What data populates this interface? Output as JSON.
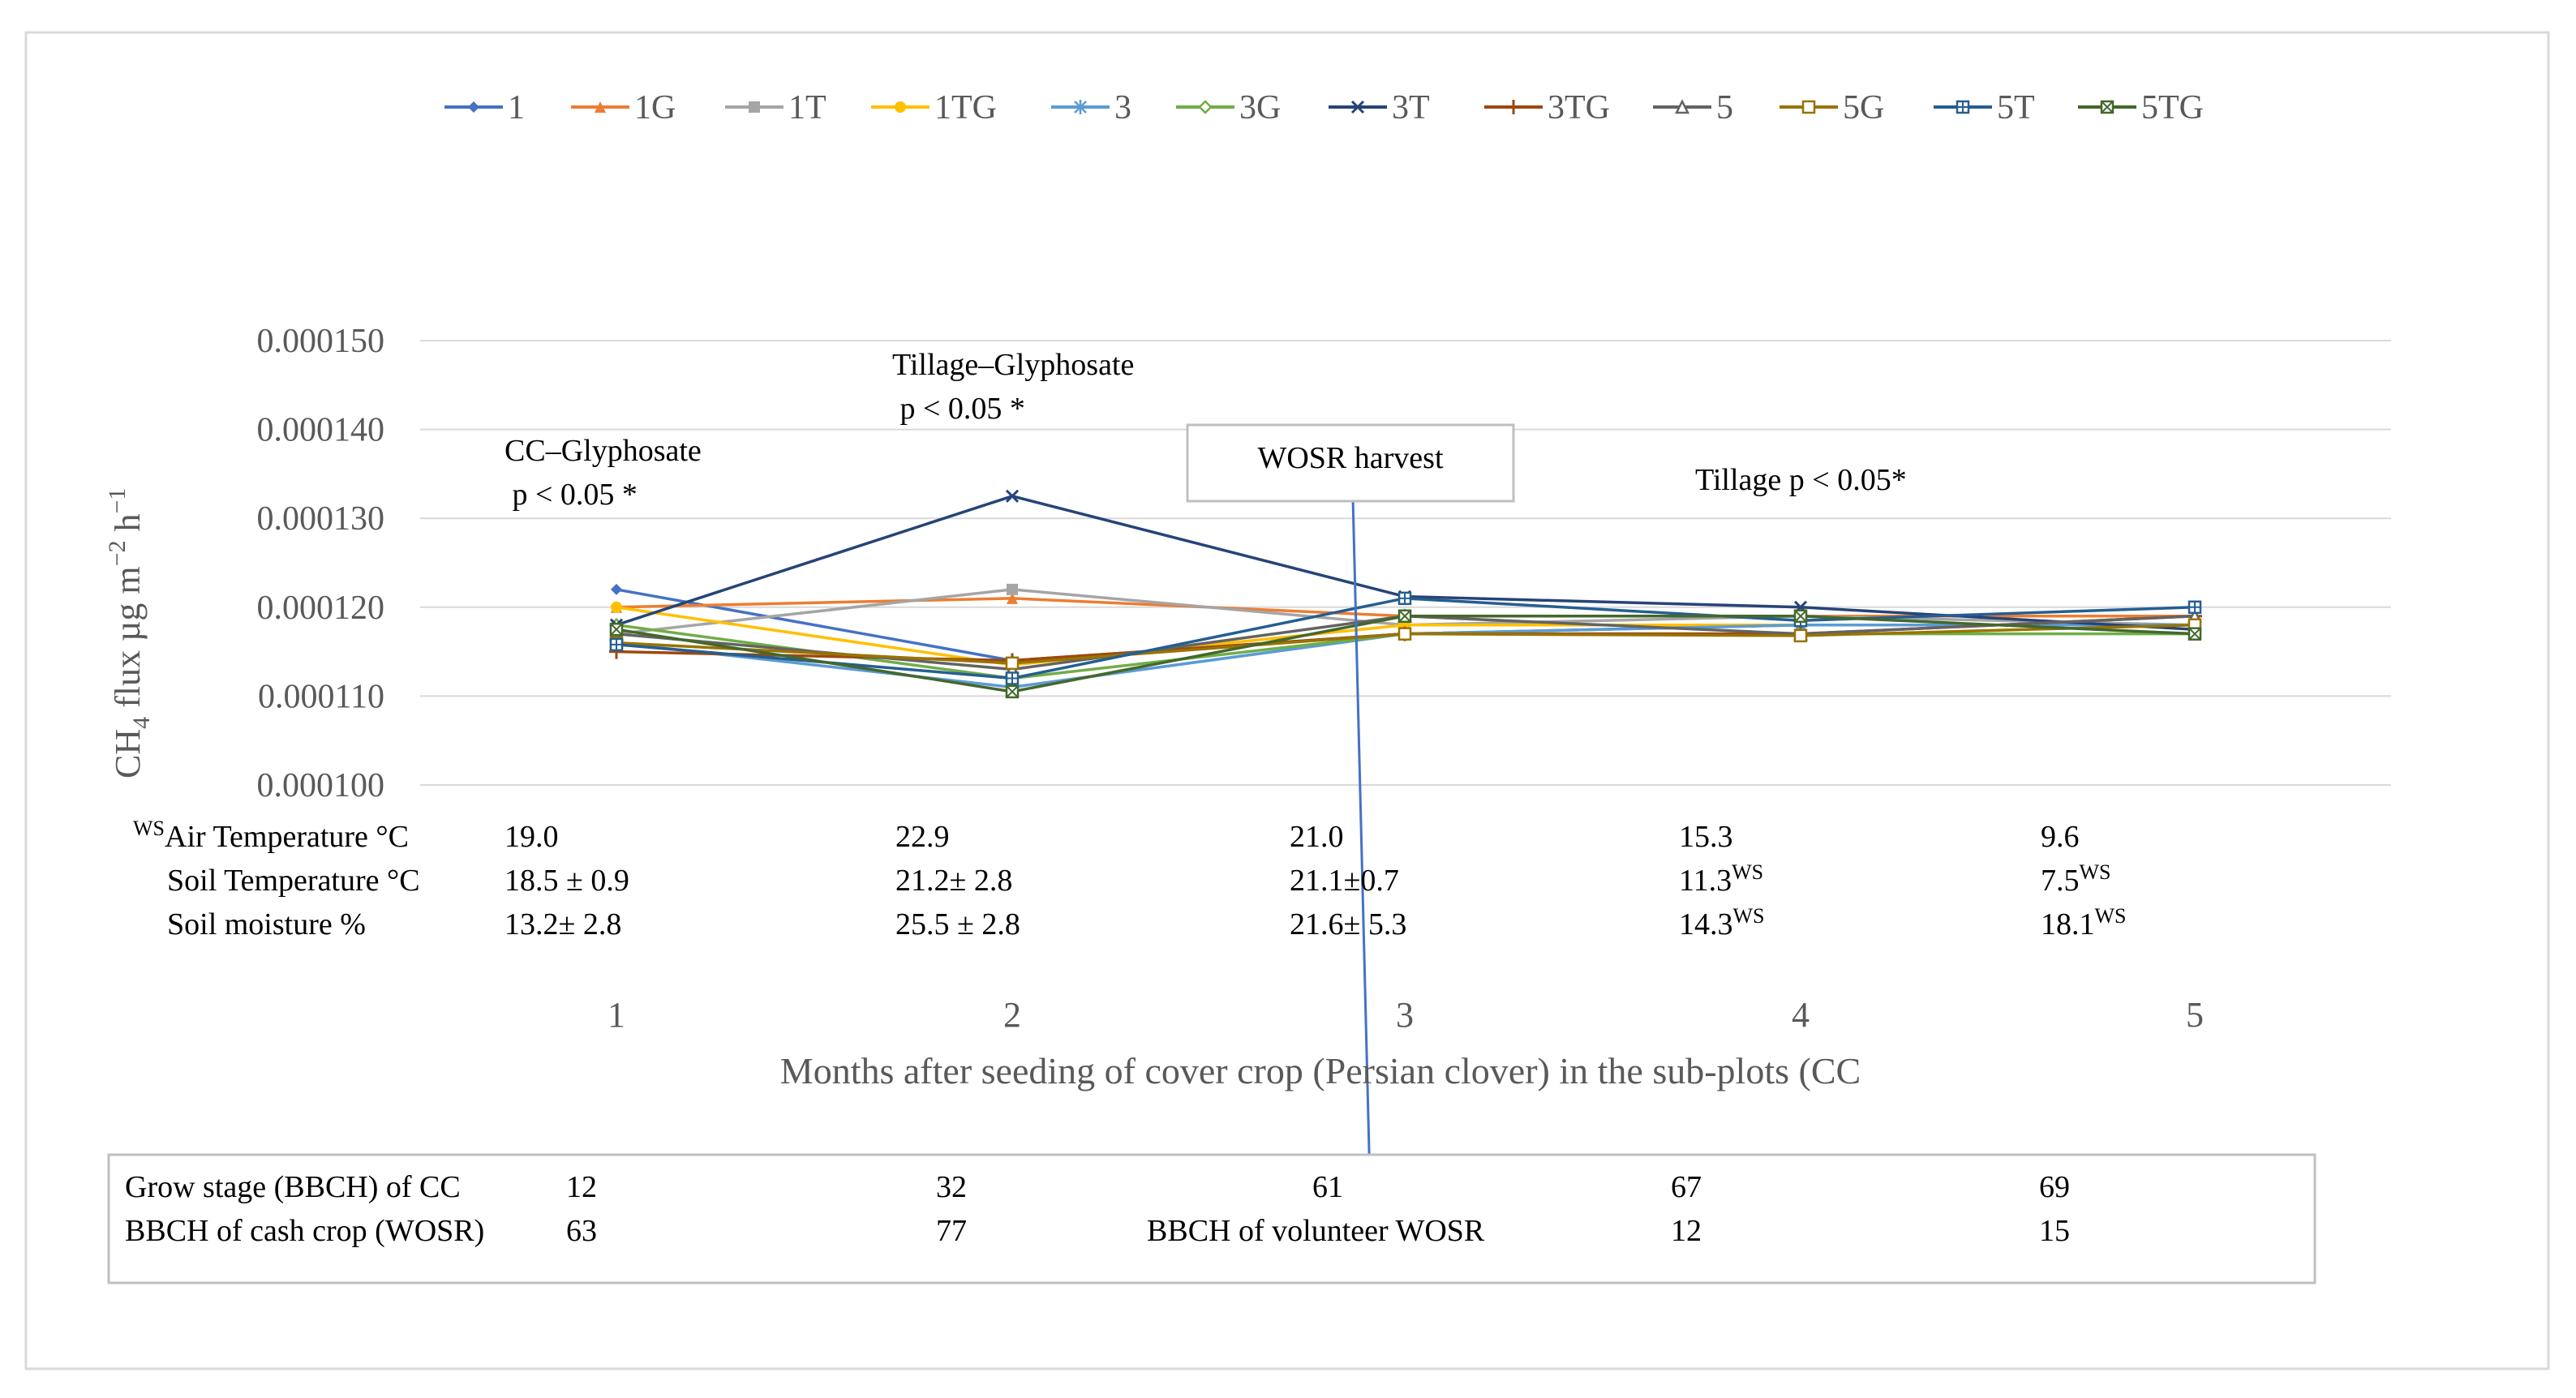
{
  "chart_data": {
    "type": "line",
    "title": "",
    "xlabel": "Months  after seeding of cover crop (Persian clover) in the sub-plots (CC",
    "ylabel": "CH4 flux µg m−2 h−1",
    "ylabel_parts": {
      "base": "CH",
      "sub": "4",
      "mid": " flux µg m",
      "sup1": "−2",
      "mid2": " h",
      "sup2": "−1"
    },
    "categories": [
      "1",
      "2",
      "3",
      "4",
      "5"
    ],
    "ylim": [
      0.0001,
      0.00015
    ],
    "yticks": [
      "0.000100",
      "0.000110",
      "0.000120",
      "0.000130",
      "0.000140",
      "0.000150"
    ],
    "ytick_values": [
      0.0001,
      0.00011,
      0.00012,
      0.00013,
      0.00014,
      0.00015
    ],
    "legend_position": "top",
    "series": [
      {
        "name": "1",
        "color": "#4472C4",
        "marker": "diamond",
        "values": [
          0.000122,
          0.000114,
          0.000117,
          0.000118,
          0.000118
        ]
      },
      {
        "name": "1G",
        "color": "#ED7D31",
        "marker": "triangle",
        "values": [
          0.00012,
          0.000121,
          0.000119,
          0.000119,
          0.000119
        ]
      },
      {
        "name": "1T",
        "color": "#A5A5A5",
        "marker": "square",
        "values": [
          0.000117,
          0.000122,
          0.000118,
          0.000119,
          0.000118
        ]
      },
      {
        "name": "1TG",
        "color": "#FFC000",
        "marker": "circle",
        "values": [
          0.00012,
          0.0001135,
          0.000118,
          0.000118,
          0.000118
        ]
      },
      {
        "name": "3",
        "color": "#5B9BD5",
        "marker": "star",
        "values": [
          0.000116,
          0.000111,
          0.000117,
          0.000118,
          0.000118
        ]
      },
      {
        "name": "3G",
        "color": "#70AD47",
        "marker": "diamond-open",
        "values": [
          0.000118,
          0.000112,
          0.000117,
          0.000117,
          0.000117
        ]
      },
      {
        "name": "3T",
        "color": "#264478",
        "marker": "x",
        "values": [
          0.000118,
          0.0001325,
          0.0001212,
          0.00012,
          0.0001175
        ]
      },
      {
        "name": "3TG",
        "color": "#9E480E",
        "marker": "plus",
        "values": [
          0.000115,
          0.000114,
          0.000117,
          0.000117,
          0.000119
        ]
      },
      {
        "name": "5",
        "color": "#636363",
        "marker": "triangle-open",
        "values": [
          0.000117,
          0.000113,
          0.000119,
          0.000117,
          0.000119
        ]
      },
      {
        "name": "5G",
        "color": "#997300",
        "marker": "square-open",
        "values": [
          0.000116,
          0.0001137,
          0.000117,
          0.0001168,
          0.000118
        ]
      },
      {
        "name": "5T",
        "color": "#255E91",
        "marker": "square-plus",
        "values": [
          0.0001158,
          0.000112,
          0.000121,
          0.0001185,
          0.00012
        ]
      },
      {
        "name": "5TG",
        "color": "#43682B",
        "marker": "square-x",
        "values": [
          0.0001175,
          0.0001105,
          0.000119,
          0.000119,
          0.000117
        ]
      }
    ],
    "annotations": {
      "cc_glyphosate": {
        "line1": "CC–Glyphosate",
        "line2": " p < 0.05 *"
      },
      "tillage_glyphosate": {
        "line1": "Tillage–Glyphosate",
        "line2": " p < 0.05 *"
      },
      "wosr_harvest": "WOSR harvest",
      "tillage": "Tillage p < 0.05*"
    },
    "weather_table": {
      "air_temp": {
        "sup": "WS",
        "label": "Air Temperature °C",
        "values": [
          "19.0",
          "22.9",
          "21.0",
          "15.3",
          "9.6"
        ]
      },
      "soil_temp": {
        "label": "Soil Temperature °C",
        "values": [
          "18.5 ± 0.9",
          "21.2± 2.8",
          "21.1±0.7",
          "11.3",
          "7.5"
        ],
        "sups": [
          "",
          "",
          "",
          "WS",
          "WS"
        ]
      },
      "soil_moisture": {
        "label": "Soil moisture %",
        "values": [
          "13.2± 2.8",
          "25.5 ± 2.8",
          "21.6± 5.3",
          "14.3",
          "18.1"
        ],
        "sups": [
          "",
          "",
          "",
          "WS",
          "WS"
        ]
      }
    },
    "growth_table": {
      "cc_row": {
        "label": "Grow stage (BBCH) of CC",
        "values": [
          "12",
          "32",
          "61",
          "67",
          "69"
        ]
      },
      "cash_row": {
        "label": "BBCH of cash crop (WOSR)",
        "values": [
          "63",
          "77",
          "",
          "12",
          "15"
        ]
      },
      "volunteer_label": "BBCH  of volunteer WOSR"
    }
  }
}
